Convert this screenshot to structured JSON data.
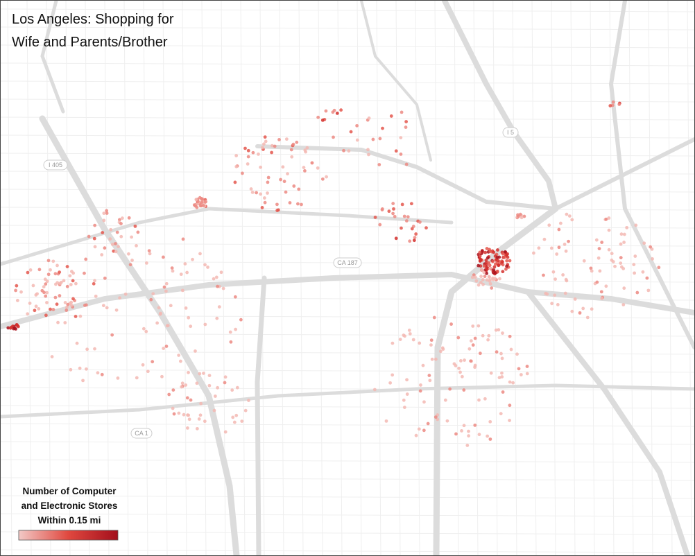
{
  "title": [
    "Los Angeles: Shopping for",
    "Wife and Parents/Brother"
  ],
  "legend": {
    "title": [
      "Number of Computer",
      "and Electronic Stores",
      "Within 0.15 mi"
    ]
  },
  "road_labels": [
    "I 405",
    "I 5",
    "CA 187",
    "CA 1"
  ]
}
